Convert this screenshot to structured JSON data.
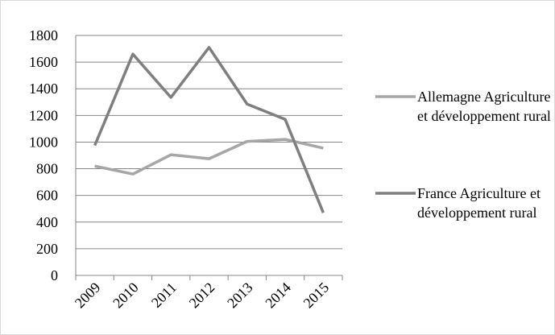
{
  "chart_data": {
    "type": "line",
    "categories": [
      "2009",
      "2010",
      "2011",
      "2012",
      "2013",
      "2014",
      "2015"
    ],
    "series": [
      {
        "name": "Allemagne Agriculture et développement rural",
        "color": "#a6a6a6",
        "values": [
          820,
          760,
          905,
          875,
          1005,
          1020,
          955
        ]
      },
      {
        "name": "France Agriculture et développement rural",
        "color": "#7f7f7f",
        "values": [
          975,
          1660,
          1335,
          1710,
          1285,
          1170,
          470
        ]
      }
    ],
    "ylim": [
      0,
      1800
    ],
    "yticks": [
      0,
      200,
      400,
      600,
      800,
      1000,
      1200,
      1400,
      1600,
      1800
    ],
    "grid": true,
    "legend": "right"
  }
}
